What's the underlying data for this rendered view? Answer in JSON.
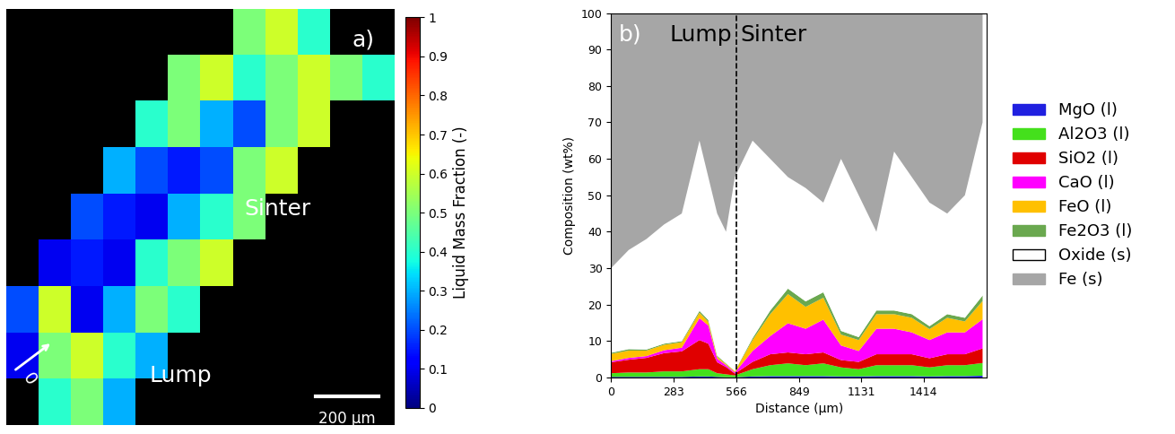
{
  "chart_data": [
    {
      "type": "heatmap",
      "panel_label": "a)",
      "region_labels": [
        "Sinter",
        "Lump"
      ],
      "scale_bar": "200 µm",
      "origin_label": "0",
      "tick_labels": false,
      "cells": [
        [
          null,
          null,
          null,
          null,
          null,
          null,
          null,
          0.5,
          0.6,
          0.4,
          null,
          null
        ],
        [
          null,
          null,
          null,
          null,
          null,
          0.5,
          0.6,
          0.4,
          0.5,
          0.6,
          0.5,
          0.4
        ],
        [
          null,
          null,
          null,
          null,
          0.4,
          0.5,
          0.3,
          0.2,
          0.5,
          0.6,
          null,
          null
        ],
        [
          null,
          null,
          null,
          0.3,
          0.2,
          0.15,
          0.2,
          0.5,
          0.6,
          null,
          null,
          null
        ],
        [
          null,
          null,
          0.2,
          0.15,
          0.1,
          0.3,
          0.4,
          0.5,
          null,
          null,
          null,
          null
        ],
        [
          null,
          0.1,
          0.15,
          0.1,
          0.4,
          0.5,
          0.6,
          null,
          null,
          null,
          null,
          null
        ],
        [
          0.2,
          0.6,
          0.1,
          0.3,
          0.5,
          0.4,
          null,
          null,
          null,
          null,
          null,
          null
        ],
        [
          0.1,
          0.5,
          0.6,
          0.4,
          0.3,
          null,
          null,
          null,
          null,
          null,
          null,
          null
        ],
        [
          null,
          0.4,
          0.5,
          0.3,
          null,
          null,
          null,
          null,
          null,
          null,
          null,
          null
        ]
      ],
      "colorbar": {
        "label": "Liquid Mass Fraction (-)",
        "range": [
          0,
          1
        ],
        "ticks": [
          0,
          0.1,
          0.2,
          0.3,
          0.4,
          0.5,
          0.6,
          0.7,
          0.8,
          0.9,
          1
        ]
      }
    },
    {
      "type": "area",
      "stacked": true,
      "panel_label": "b)",
      "region_labels": [
        "Lump",
        "Sinter"
      ],
      "divider": 566,
      "xlabel": "Distance (µm)",
      "ylabel": "Composition (wt%)",
      "xlim": [
        0,
        1700
      ],
      "xticks": [
        0,
        283,
        566,
        849,
        1131,
        1414
      ],
      "ylim": [
        0,
        100
      ],
      "yticks": [
        0,
        10,
        20,
        30,
        40,
        50,
        60,
        70,
        80,
        90,
        100
      ],
      "legend": "right",
      "x": [
        0,
        80,
        160,
        240,
        320,
        400,
        440,
        480,
        520,
        560,
        640,
        720,
        800,
        880,
        960,
        1040,
        1120,
        1200,
        1280,
        1360,
        1440,
        1520,
        1600,
        1680
      ],
      "series": [
        {
          "name": "MgO (l)",
          "color": "#2020e0",
          "values": [
            0.2,
            0.2,
            0.2,
            0.2,
            0.2,
            0.3,
            0.3,
            0.2,
            0.1,
            0.1,
            0.3,
            0.4,
            0.4,
            0.4,
            0.4,
            0.3,
            0.3,
            0.4,
            0.4,
            0.4,
            0.3,
            0.4,
            0.4,
            0.5
          ]
        },
        {
          "name": "Al2O3 (l)",
          "color": "#44e01c",
          "values": [
            1.0,
            1.2,
            1.2,
            1.5,
            1.5,
            2.0,
            2.0,
            1.0,
            0.8,
            0.5,
            2.0,
            3.0,
            3.5,
            3.0,
            3.5,
            2.5,
            2.0,
            3.0,
            3.0,
            3.0,
            2.5,
            3.0,
            3.0,
            3.5
          ]
        },
        {
          "name": "SiO2 (l)",
          "color": "#e00000",
          "values": [
            3.0,
            3.5,
            4.0,
            5.0,
            5.5,
            8.0,
            7.0,
            3.0,
            2.0,
            0.5,
            2.0,
            3.0,
            3.0,
            3.0,
            3.0,
            2.0,
            2.0,
            3.0,
            3.0,
            3.0,
            2.5,
            3.0,
            3.0,
            4.0
          ]
        },
        {
          "name": "CaO (l)",
          "color": "#ff00ff",
          "values": [
            0.3,
            0.5,
            0.5,
            0.8,
            1.0,
            6.0,
            5.0,
            1.0,
            0.5,
            0.3,
            3.0,
            5.0,
            8.0,
            7.0,
            9.0,
            4.0,
            3.0,
            7.0,
            7.0,
            6.0,
            5.0,
            6.0,
            6.0,
            8.0
          ]
        },
        {
          "name": "FeO (l)",
          "color": "#ffc000",
          "values": [
            2.0,
            2.0,
            1.5,
            1.5,
            1.5,
            1.5,
            1.0,
            0.5,
            0.3,
            0.3,
            3.0,
            6.0,
            8.0,
            6.0,
            6.0,
            3.0,
            3.0,
            4.0,
            4.0,
            4.0,
            3.0,
            4.0,
            3.0,
            5.0
          ]
        },
        {
          "name": "Fe2O3 (l)",
          "color": "#6aa84f",
          "values": [
            0.3,
            0.4,
            0.3,
            0.3,
            0.3,
            0.5,
            0.5,
            0.3,
            0.2,
            0.1,
            0.5,
            1.0,
            1.5,
            1.5,
            1.5,
            1.0,
            0.8,
            1.0,
            1.0,
            1.0,
            0.8,
            1.0,
            1.0,
            1.5
          ]
        },
        {
          "name": "Oxide (s)",
          "color": "#ffffff",
          "values": [
            23.2,
            27.2,
            30.3,
            32.7,
            35.0,
            46.7,
            39.2,
            39.0,
            36.1,
            53.2,
            54.2,
            41.6,
            30.6,
            31.1,
            24.6,
            47.2,
            38.9,
            21.6,
            43.6,
            37.6,
            33.9,
            27.6,
            33.6,
            47.5
          ]
        },
        {
          "name": "Fe (s)",
          "color": "#a6a6a6",
          "values": [
            70,
            65,
            62,
            58,
            55,
            35,
            45,
            55,
            60,
            45,
            35,
            40,
            45,
            48,
            52,
            40,
            50,
            60,
            38,
            45,
            52,
            55,
            50,
            30
          ]
        }
      ]
    }
  ]
}
